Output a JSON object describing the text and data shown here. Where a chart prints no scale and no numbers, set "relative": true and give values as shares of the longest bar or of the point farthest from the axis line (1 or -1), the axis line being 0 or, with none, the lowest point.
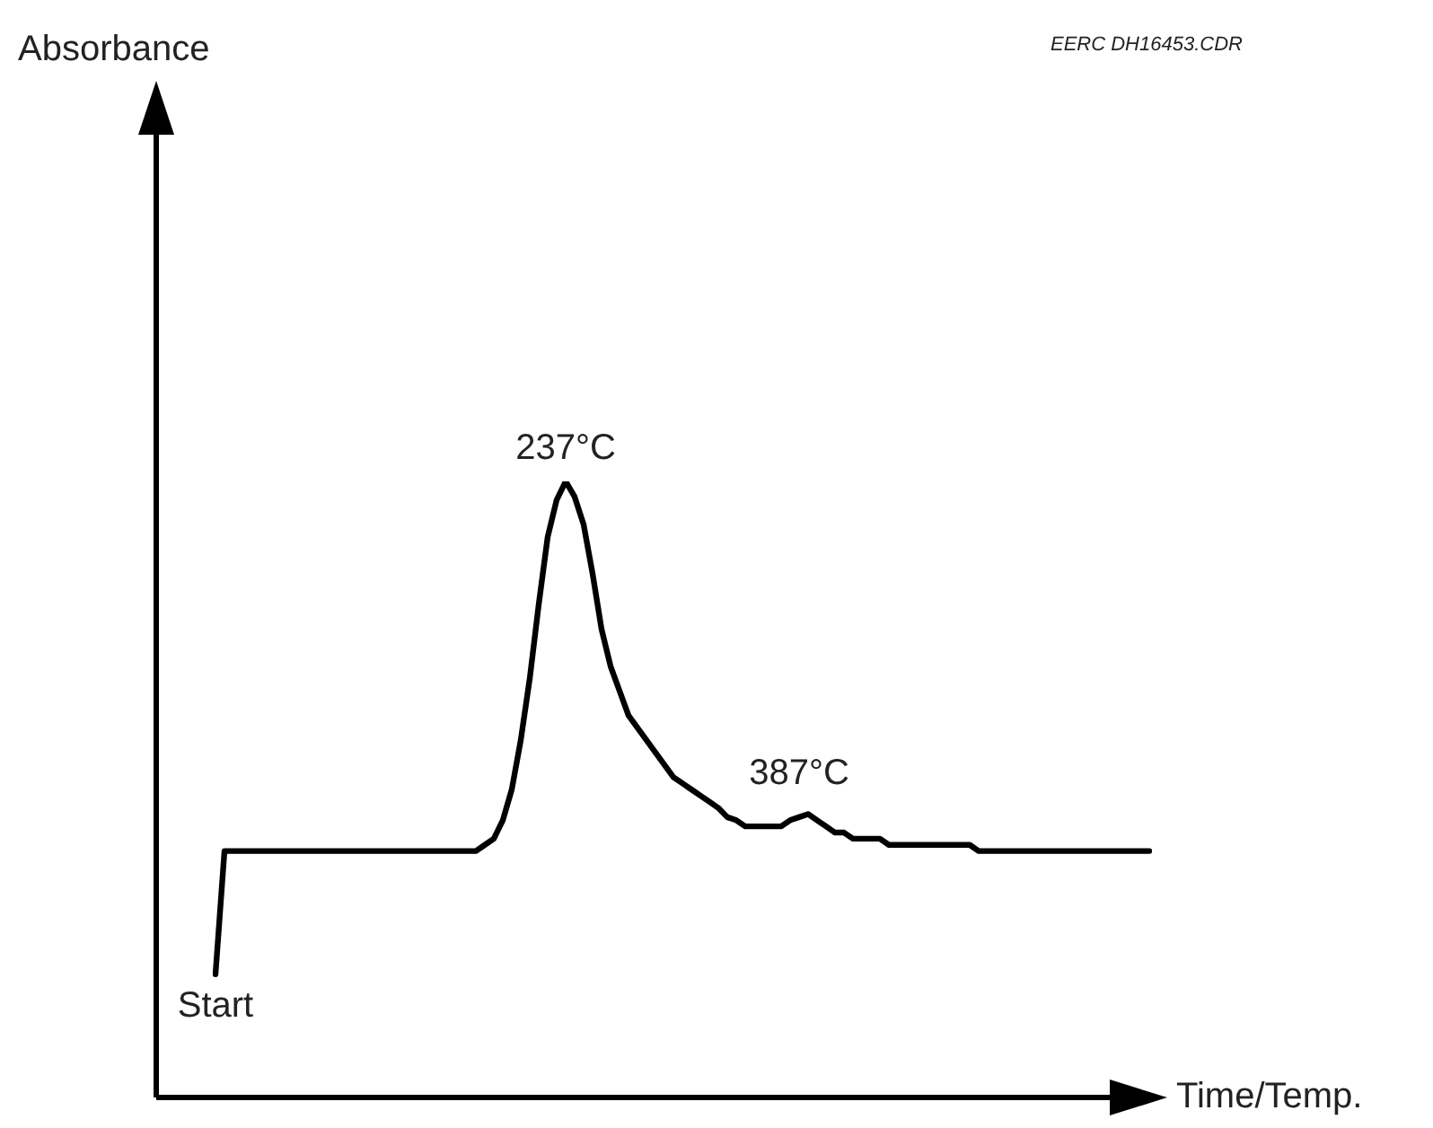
{
  "chart_data": {
    "type": "line",
    "relative": true,
    "xlabel": "Time/Temp.",
    "legend": false,
    "marker": "none",
    "line_style": "solid",
    "annotations": [
      "EERC DH16453.CDR",
      "237°C",
      "387°C",
      "Start",
      "Absorbance"
    ],
    "categories": [
      null,
      null,
      null,
      null,
      null,
      null,
      null,
      null,
      null,
      null,
      null,
      null,
      null,
      null,
      null,
      null,
      null,
      null,
      null,
      null,
      null,
      null,
      null,
      null,
      null,
      null,
      null,
      null,
      null,
      null,
      null,
      null,
      null,
      null,
      null,
      null,
      null,
      null,
      null,
      null,
      null,
      null,
      null,
      null,
      null,
      null,
      null,
      null,
      null,
      null,
      null,
      null,
      null,
      null,
      null,
      null,
      null,
      null,
      null,
      null,
      null,
      null,
      null,
      null,
      null,
      null,
      null,
      null,
      null,
      null,
      null,
      null,
      null,
      null,
      null,
      null,
      null,
      null,
      null,
      null,
      null,
      null,
      null,
      null,
      null,
      null,
      null,
      null,
      null,
      null,
      null,
      null,
      null,
      null,
      null,
      null,
      null,
      null,
      null,
      null,
      null,
      null,
      null,
      null,
      null
    ],
    "series": [
      {
        "color": "#000000",
        "values": [
          0.2,
          0.4,
          0.4,
          0.4,
          0.4,
          0.4,
          0.4,
          0.4,
          0.4,
          0.4,
          0.4,
          0.4,
          0.4,
          0.4,
          0.4,
          0.4,
          0.4,
          0.4,
          0.4,
          0.4,
          0.4,
          0.4,
          0.4,
          0.4,
          0.4,
          0.4,
          0.4,
          0.4,
          0.4,
          0.4,
          0.41,
          0.42,
          0.45,
          0.5,
          0.58,
          0.68,
          0.8,
          0.91,
          0.97,
          1.0,
          0.975,
          0.93,
          0.85,
          0.76,
          0.7,
          0.66,
          0.62,
          0.6,
          0.58,
          0.56,
          0.54,
          0.52,
          0.51,
          0.5,
          0.49,
          0.48,
          0.47,
          0.455,
          0.45,
          0.44,
          0.44,
          0.44,
          0.44,
          0.44,
          0.45,
          0.455,
          0.46,
          0.45,
          0.44,
          0.43,
          0.43,
          0.42,
          0.42,
          0.42,
          0.42,
          0.41,
          0.41,
          0.41,
          0.41,
          0.41,
          0.41,
          0.41,
          0.41,
          0.41,
          0.41,
          0.4,
          0.4,
          0.4,
          0.4,
          0.4,
          0.4,
          0.4,
          0.4,
          0.4,
          0.4,
          0.4,
          0.4,
          0.4,
          0.4,
          0.4,
          0.4,
          0.4,
          0.4,
          0.4,
          0.4
        ]
      }
    ]
  }
}
